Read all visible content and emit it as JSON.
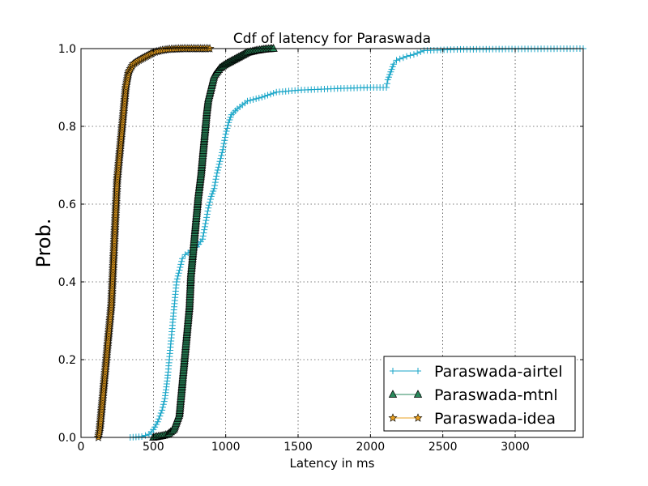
{
  "chart_data": {
    "type": "line",
    "title": "Cdf of latency for Paraswada",
    "xlabel": "Latency in ms",
    "ylabel": "Prob.",
    "xlim": [
      0,
      3470
    ],
    "ylim": [
      0,
      1.0
    ],
    "xticks": [
      0,
      500,
      1000,
      1500,
      2000,
      2500,
      3000
    ],
    "yticks": [
      0.0,
      0.2,
      0.4,
      0.6,
      0.8,
      1.0
    ],
    "xtick_labels": [
      "0",
      "500",
      "1000",
      "1500",
      "2000",
      "2500",
      "3000"
    ],
    "ytick_labels": [
      "0.0",
      "0.2",
      "0.4",
      "0.6",
      "0.8",
      "1.0"
    ],
    "grid": true,
    "legend_position": "lower-right",
    "series": [
      {
        "name": "Paraswada-airtel",
        "color": "#1aa6c8",
        "marker": "plus",
        "points": [
          [
            340,
            0.0
          ],
          [
            420,
            0.002
          ],
          [
            470,
            0.008
          ],
          [
            500,
            0.02
          ],
          [
            530,
            0.04
          ],
          [
            560,
            0.07
          ],
          [
            580,
            0.1
          ],
          [
            590,
            0.13
          ],
          [
            600,
            0.16
          ],
          [
            610,
            0.2
          ],
          [
            620,
            0.24
          ],
          [
            630,
            0.28
          ],
          [
            640,
            0.32
          ],
          [
            650,
            0.36
          ],
          [
            660,
            0.4
          ],
          [
            680,
            0.43
          ],
          [
            700,
            0.46
          ],
          [
            720,
            0.47
          ],
          [
            760,
            0.48
          ],
          [
            800,
            0.49
          ],
          [
            840,
            0.51
          ],
          [
            860,
            0.55
          ],
          [
            880,
            0.59
          ],
          [
            900,
            0.62
          ],
          [
            920,
            0.64
          ],
          [
            940,
            0.68
          ],
          [
            960,
            0.71
          ],
          [
            980,
            0.74
          ],
          [
            1000,
            0.78
          ],
          [
            1020,
            0.81
          ],
          [
            1040,
            0.83
          ],
          [
            1080,
            0.845
          ],
          [
            1150,
            0.865
          ],
          [
            1250,
            0.875
          ],
          [
            1350,
            0.888
          ],
          [
            1500,
            0.893
          ],
          [
            1750,
            0.897
          ],
          [
            2000,
            0.9
          ],
          [
            2110,
            0.9
          ],
          [
            2120,
            0.92
          ],
          [
            2140,
            0.94
          ],
          [
            2160,
            0.96
          ],
          [
            2180,
            0.97
          ],
          [
            2250,
            0.98
          ],
          [
            2300,
            0.985
          ],
          [
            2370,
            0.995
          ],
          [
            2600,
            0.998
          ],
          [
            3000,
            0.999
          ],
          [
            3470,
            1.0
          ]
        ]
      },
      {
        "name": "Paraswada-mtnl",
        "color": "#2a8a5c",
        "marker": "triangle",
        "points": [
          [
            500,
            0.0
          ],
          [
            560,
            0.004
          ],
          [
            600,
            0.008
          ],
          [
            640,
            0.02
          ],
          [
            660,
            0.04
          ],
          [
            680,
            0.06
          ],
          [
            690,
            0.1
          ],
          [
            700,
            0.14
          ],
          [
            710,
            0.18
          ],
          [
            720,
            0.22
          ],
          [
            730,
            0.26
          ],
          [
            740,
            0.3
          ],
          [
            750,
            0.34
          ],
          [
            755,
            0.38
          ],
          [
            760,
            0.42
          ],
          [
            770,
            0.46
          ],
          [
            780,
            0.5
          ],
          [
            790,
            0.54
          ],
          [
            800,
            0.58
          ],
          [
            810,
            0.62
          ],
          [
            820,
            0.65
          ],
          [
            830,
            0.68
          ],
          [
            840,
            0.72
          ],
          [
            850,
            0.76
          ],
          [
            860,
            0.8
          ],
          [
            870,
            0.84
          ],
          [
            880,
            0.87
          ],
          [
            900,
            0.9
          ],
          [
            920,
            0.93
          ],
          [
            960,
            0.95
          ],
          [
            1000,
            0.96
          ],
          [
            1050,
            0.97
          ],
          [
            1100,
            0.98
          ],
          [
            1150,
            0.99
          ],
          [
            1210,
            0.995
          ],
          [
            1260,
            0.998
          ],
          [
            1330,
            1.0
          ]
        ]
      },
      {
        "name": "Paraswada-idea",
        "color": "#e8a020",
        "marker": "star",
        "points": [
          [
            120,
            0.0
          ],
          [
            130,
            0.02
          ],
          [
            140,
            0.06
          ],
          [
            150,
            0.1
          ],
          [
            160,
            0.14
          ],
          [
            170,
            0.18
          ],
          [
            180,
            0.22
          ],
          [
            190,
            0.26
          ],
          [
            200,
            0.3
          ],
          [
            210,
            0.34
          ],
          [
            215,
            0.38
          ],
          [
            220,
            0.42
          ],
          [
            225,
            0.46
          ],
          [
            230,
            0.5
          ],
          [
            235,
            0.54
          ],
          [
            240,
            0.58
          ],
          [
            245,
            0.62
          ],
          [
            250,
            0.66
          ],
          [
            260,
            0.7
          ],
          [
            270,
            0.74
          ],
          [
            280,
            0.78
          ],
          [
            290,
            0.82
          ],
          [
            300,
            0.86
          ],
          [
            310,
            0.9
          ],
          [
            330,
            0.94
          ],
          [
            360,
            0.96
          ],
          [
            400,
            0.97
          ],
          [
            450,
            0.98
          ],
          [
            500,
            0.99
          ],
          [
            550,
            0.995
          ],
          [
            600,
            0.998
          ],
          [
            700,
            1.0
          ],
          [
            890,
            1.0
          ]
        ]
      }
    ]
  }
}
